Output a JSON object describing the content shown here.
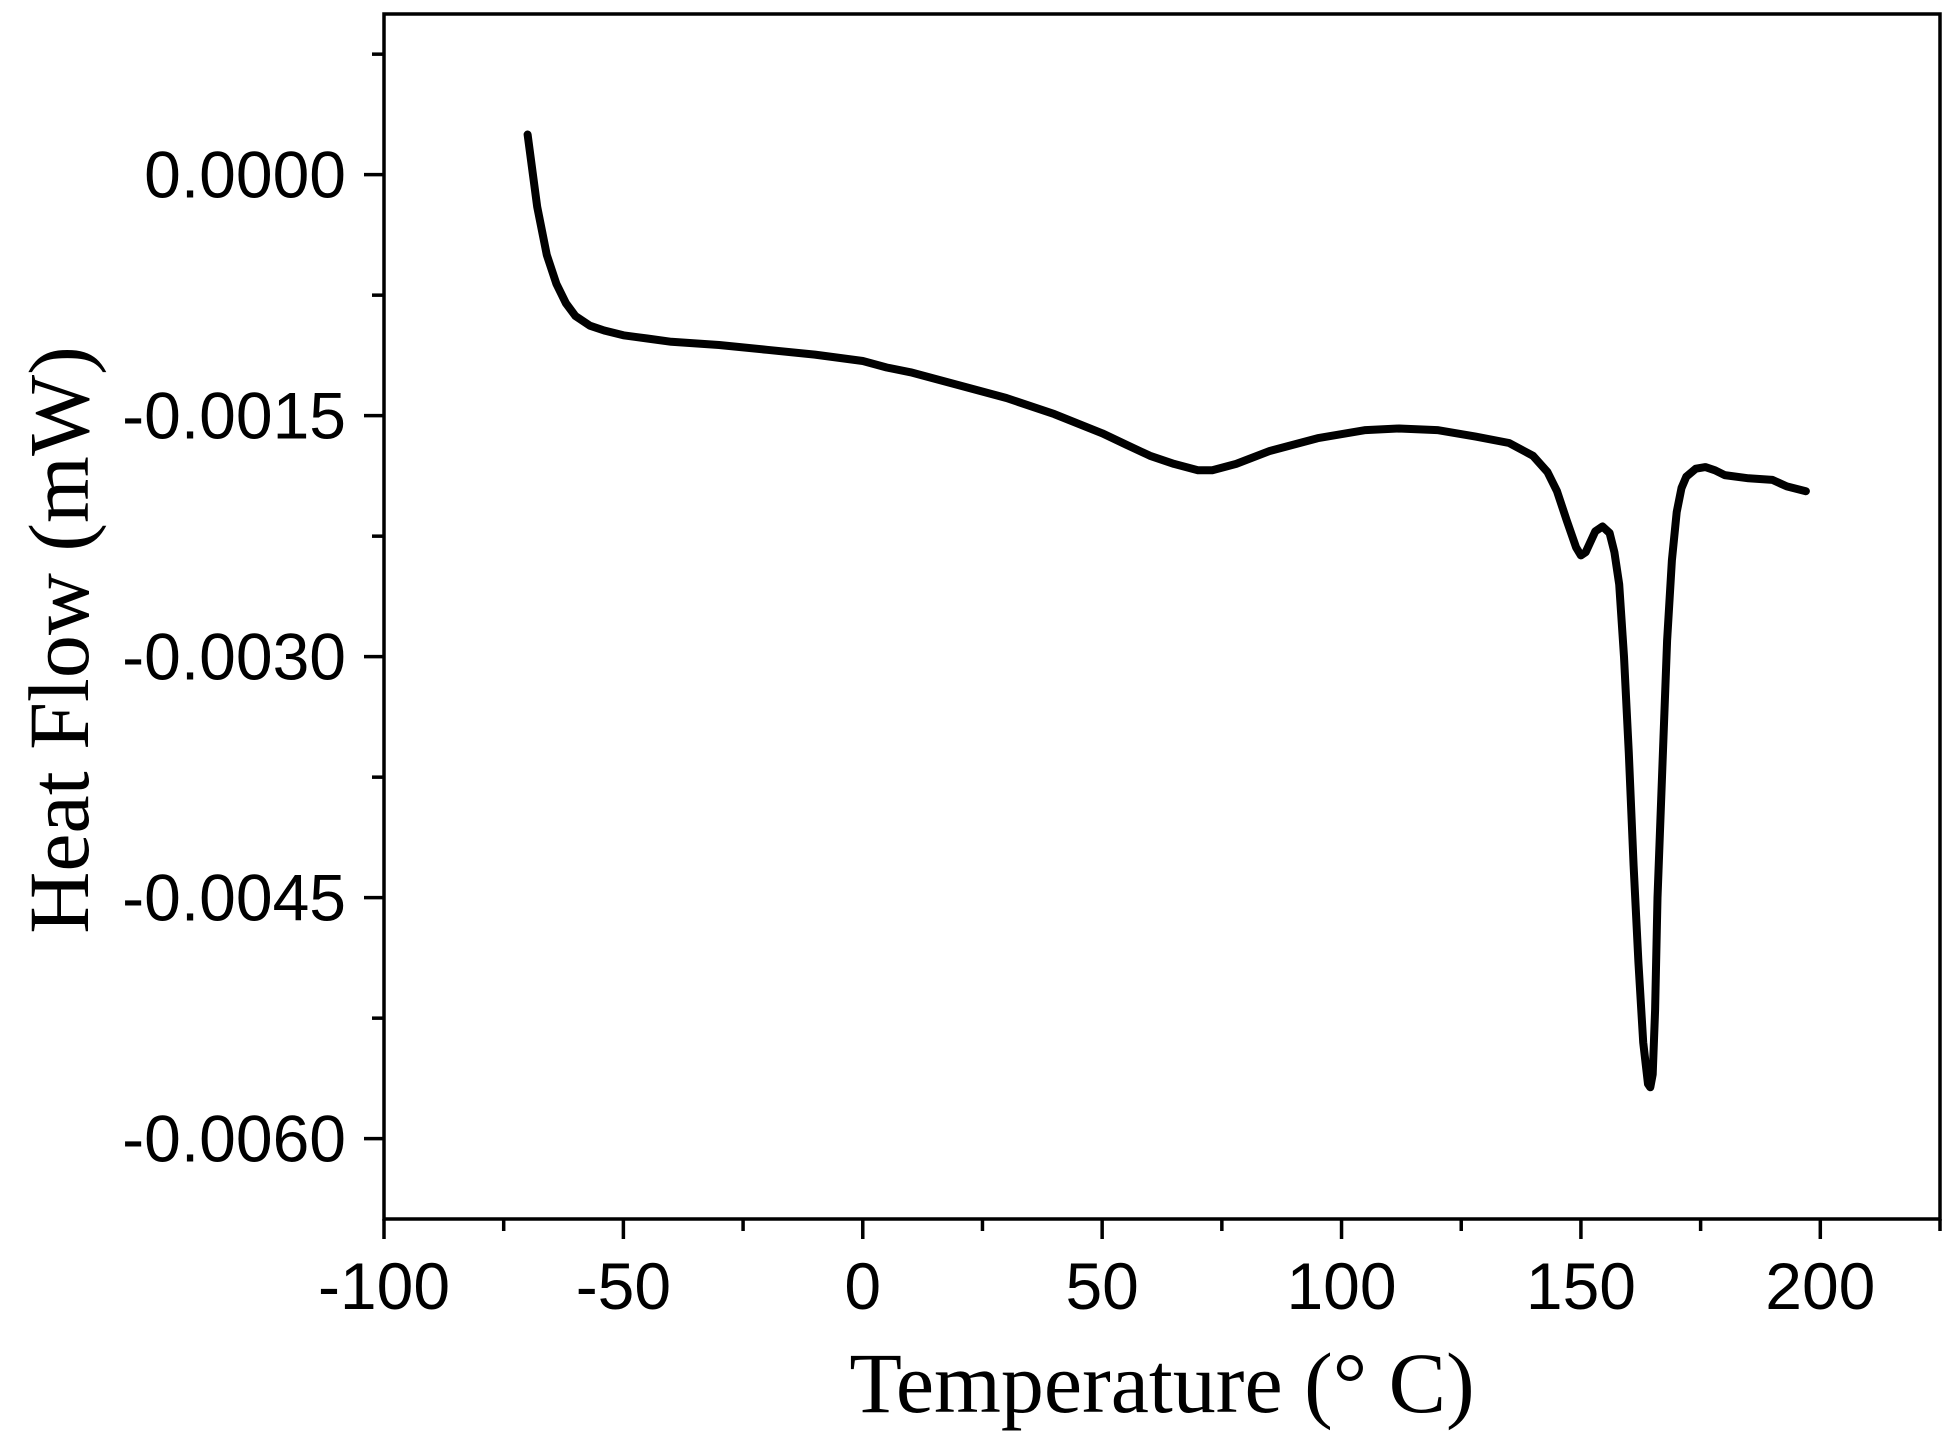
{
  "chart_data": {
    "type": "line",
    "title": "",
    "xlabel": "Temperature (° C)",
    "ylabel": "Heat Flow (mW)",
    "xlim": [
      -100,
      225
    ],
    "ylim": [
      -0.0065,
      0.001
    ],
    "x_ticks": [
      -100,
      -50,
      0,
      50,
      100,
      150,
      200
    ],
    "x_tick_labels": [
      "-100",
      "-50",
      "0",
      "50",
      "100",
      "150",
      "200"
    ],
    "y_ticks": [
      0.0,
      -0.0015,
      -0.003,
      -0.0045,
      -0.006
    ],
    "y_tick_labels": [
      "0.0000",
      "-0.0015",
      "-0.0030",
      "-0.0045",
      "-0.0060"
    ],
    "grid": false,
    "legend": "none",
    "series": [
      {
        "color": "#000000",
        "x": [
          -70,
          -68,
          -66,
          -64,
          -62,
          -60,
          -57,
          -54,
          -50,
          -45,
          -40,
          -30,
          -20,
          -10,
          0,
          5,
          10,
          20,
          30,
          40,
          50,
          55,
          60,
          65,
          70,
          73,
          78,
          85,
          95,
          105,
          112,
          120,
          128,
          135,
          140,
          143,
          145,
          147,
          149,
          150,
          151,
          153,
          154.5,
          156,
          157,
          158,
          159,
          160,
          161,
          162,
          163,
          164,
          164.5,
          165,
          165.5,
          166,
          167,
          168,
          169,
          170,
          171,
          172,
          174,
          176,
          178,
          180,
          185,
          190,
          193,
          197
        ],
        "y": [
          0.00025,
          -0.0002,
          -0.0005,
          -0.00068,
          -0.0008,
          -0.00088,
          -0.00094,
          -0.00097,
          -0.001,
          -0.00102,
          -0.00104,
          -0.00106,
          -0.00109,
          -0.00112,
          -0.00116,
          -0.0012,
          -0.00123,
          -0.00131,
          -0.00139,
          -0.00149,
          -0.00161,
          -0.00168,
          -0.00175,
          -0.0018,
          -0.00184,
          -0.00184,
          -0.0018,
          -0.00172,
          -0.00164,
          -0.00159,
          -0.00158,
          -0.00159,
          -0.00163,
          -0.00167,
          -0.00175,
          -0.00185,
          -0.00197,
          -0.00215,
          -0.00232,
          -0.00237,
          -0.00235,
          -0.00222,
          -0.00219,
          -0.00223,
          -0.00235,
          -0.00255,
          -0.003,
          -0.0036,
          -0.0043,
          -0.0049,
          -0.0054,
          -0.00566,
          -0.00568,
          -0.0056,
          -0.0052,
          -0.0045,
          -0.0037,
          -0.0029,
          -0.0024,
          -0.0021,
          -0.00195,
          -0.00188,
          -0.00183,
          -0.00182,
          -0.00184,
          -0.00187,
          -0.00189,
          -0.0019,
          -0.00194,
          -0.00197
        ]
      }
    ]
  }
}
